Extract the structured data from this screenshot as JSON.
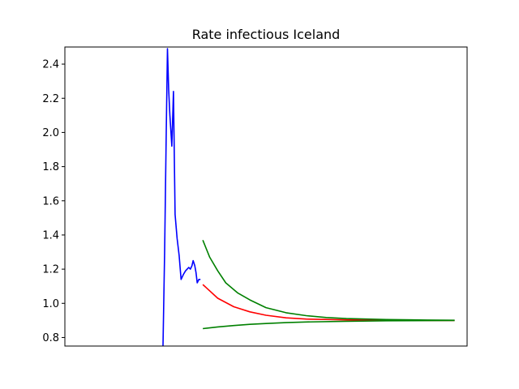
{
  "chart_data": {
    "type": "line",
    "title": "Rate infectious Iceland",
    "xlabel": "",
    "ylabel": "",
    "x_ticks_shown": false,
    "xlim": [
      0,
      100
    ],
    "ylim": [
      0.75,
      2.5
    ],
    "yticks": [
      0.8,
      1.0,
      1.2,
      1.4,
      1.6,
      1.8,
      2.0,
      2.2,
      2.4
    ],
    "ytick_labels": [
      "0.8",
      "1.0",
      "1.2",
      "1.4",
      "1.6",
      "1.8",
      "2.0",
      "2.2",
      "2.4"
    ],
    "grid": false,
    "legend": false,
    "series": [
      {
        "color": "#0000ff",
        "points": [
          [
            24.4,
            0.75
          ],
          [
            24.8,
            1.3
          ],
          [
            25.2,
            2.0
          ],
          [
            25.5,
            2.49
          ],
          [
            25.8,
            2.25
          ],
          [
            26.1,
            2.1
          ],
          [
            26.6,
            1.92
          ],
          [
            27.0,
            2.24
          ],
          [
            27.4,
            1.52
          ],
          [
            27.9,
            1.38
          ],
          [
            28.4,
            1.28
          ],
          [
            28.9,
            1.14
          ],
          [
            29.5,
            1.17
          ],
          [
            30.0,
            1.19
          ],
          [
            30.4,
            1.2
          ],
          [
            30.8,
            1.21
          ],
          [
            31.2,
            1.2
          ],
          [
            31.6,
            1.22
          ],
          [
            31.9,
            1.25
          ],
          [
            32.3,
            1.22
          ],
          [
            32.6,
            1.18
          ],
          [
            32.9,
            1.12
          ],
          [
            33.3,
            1.14
          ],
          [
            33.7,
            1.14
          ]
        ]
      },
      {
        "color": "#ff0000",
        "points": [
          [
            34.3,
            1.11
          ],
          [
            38,
            1.03
          ],
          [
            42,
            0.98
          ],
          [
            46,
            0.95
          ],
          [
            50,
            0.93
          ],
          [
            55,
            0.915
          ],
          [
            60,
            0.908
          ],
          [
            70,
            0.903
          ],
          [
            80,
            0.901
          ],
          [
            90,
            0.9
          ],
          [
            96.9,
            0.9
          ]
        ]
      },
      {
        "color": "#008000",
        "points": [
          [
            34.3,
            1.37
          ],
          [
            36,
            1.27
          ],
          [
            38,
            1.19
          ],
          [
            40,
            1.12
          ],
          [
            43,
            1.06
          ],
          [
            46,
            1.02
          ],
          [
            50,
            0.975
          ],
          [
            55,
            0.945
          ],
          [
            60,
            0.928
          ],
          [
            65,
            0.917
          ],
          [
            70,
            0.911
          ],
          [
            80,
            0.905
          ],
          [
            90,
            0.902
          ],
          [
            96.9,
            0.901
          ]
        ]
      },
      {
        "color": "#008000",
        "points": [
          [
            34.3,
            0.852
          ],
          [
            38,
            0.862
          ],
          [
            42,
            0.87
          ],
          [
            46,
            0.877
          ],
          [
            50,
            0.882
          ],
          [
            55,
            0.887
          ],
          [
            60,
            0.891
          ],
          [
            70,
            0.895
          ],
          [
            80,
            0.898
          ],
          [
            90,
            0.899
          ],
          [
            96.9,
            0.9
          ]
        ]
      }
    ]
  }
}
